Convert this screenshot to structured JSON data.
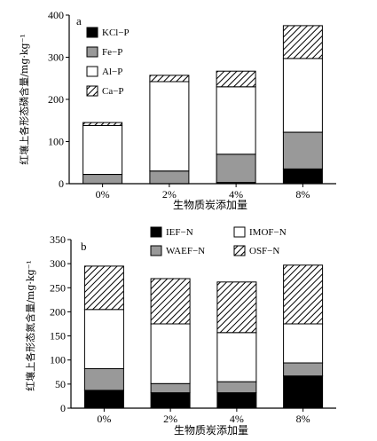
{
  "chart_data": [
    {
      "panel": "a",
      "type": "bar",
      "stacked": true,
      "categories": [
        "0%",
        "2%",
        "4%",
        "8%"
      ],
      "xlabel": "生物质炭添加量",
      "ylabel": "红壤上各形态磷含量/mg·kg⁻¹",
      "ylim": [
        0,
        400
      ],
      "yticks": [
        0,
        100,
        200,
        300,
        400
      ],
      "series": [
        {
          "name": "KCl−P",
          "pattern": "solid-black",
          "values": [
            0,
            0,
            3,
            35
          ]
        },
        {
          "name": "Fe−P",
          "pattern": "solid-gray",
          "values": [
            22,
            30,
            67,
            87
          ]
        },
        {
          "name": "Al−P",
          "pattern": "white",
          "values": [
            116,
            212,
            160,
            175
          ]
        },
        {
          "name": "Ca−P",
          "pattern": "hatched",
          "values": [
            7,
            15,
            37,
            78
          ]
        }
      ],
      "legend_position": "top-left"
    },
    {
      "panel": "b",
      "type": "bar",
      "stacked": true,
      "categories": [
        "0%",
        "2%",
        "4%",
        "8%"
      ],
      "xlabel": "生物质炭添加量",
      "ylabel": "红壤上各形态氮含量/mg·kg⁻¹",
      "ylim": [
        0,
        350
      ],
      "yticks": [
        0,
        50,
        100,
        150,
        200,
        250,
        300,
        350
      ],
      "series": [
        {
          "name": "IEF−N",
          "pattern": "solid-black",
          "values": [
            37,
            32,
            32,
            67
          ]
        },
        {
          "name": "WAEF−N",
          "pattern": "solid-gray",
          "values": [
            45,
            19,
            23,
            27
          ]
        },
        {
          "name": "IMOF−N",
          "pattern": "white",
          "values": [
            123,
            124,
            102,
            81
          ]
        },
        {
          "name": "OSF−N",
          "pattern": "hatched",
          "values": [
            90,
            94,
            105,
            122
          ]
        }
      ],
      "legend_position": "top"
    }
  ]
}
